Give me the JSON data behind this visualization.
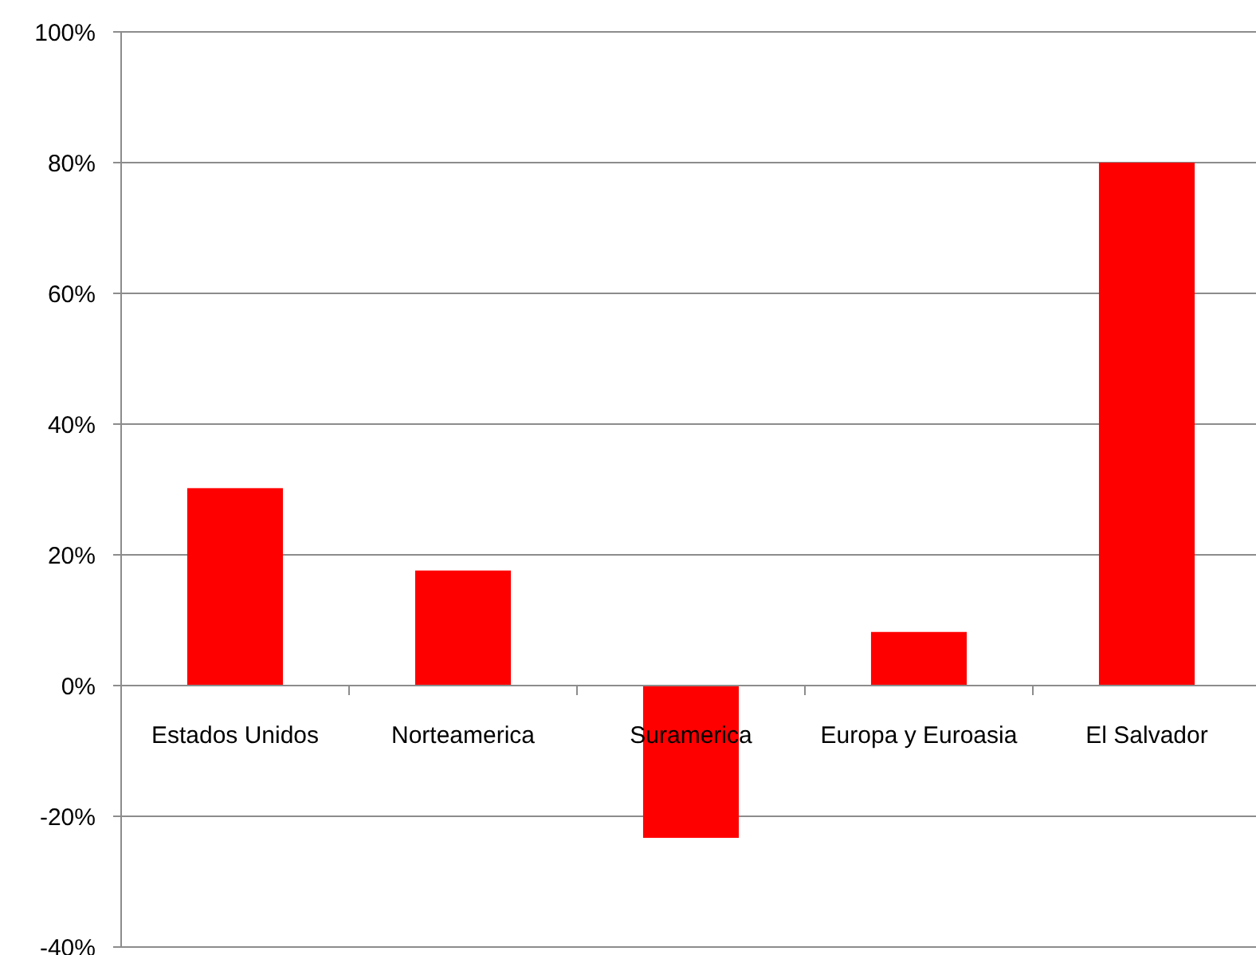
{
  "chart_data": {
    "type": "bar",
    "categories": [
      "Estados Unidos",
      "Norteamerica",
      "Suramerica",
      "Europa y Euroasia",
      "El Salvador"
    ],
    "values": [
      30.2,
      17.6,
      -23.3,
      8.2,
      80
    ],
    "color": "#ff0000",
    "ylim": [
      -40,
      100
    ],
    "yticks": [
      {
        "value": -40,
        "label": "-40%"
      },
      {
        "value": -20,
        "label": "-20%"
      },
      {
        "value": 0,
        "label": "0%"
      },
      {
        "value": 20,
        "label": "20%"
      },
      {
        "value": 40,
        "label": "40%"
      },
      {
        "value": 60,
        "label": "60%"
      },
      {
        "value": 80,
        "label": "80%"
      },
      {
        "value": 100,
        "label": "100%"
      }
    ],
    "grid": "y"
  }
}
